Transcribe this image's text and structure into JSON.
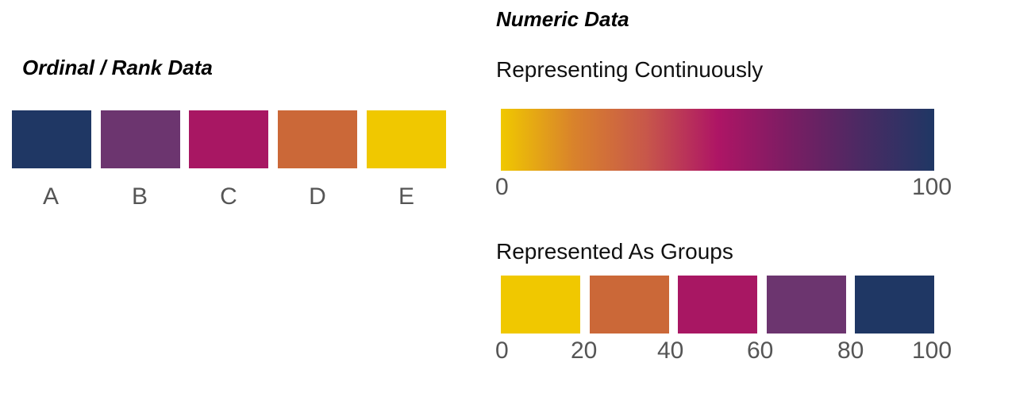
{
  "ordinal": {
    "title": "Ordinal / Rank Data",
    "items": [
      {
        "label": "A",
        "color": "#1f3764"
      },
      {
        "label": "B",
        "color": "#6c356f"
      },
      {
        "label": "C",
        "color": "#a81763"
      },
      {
        "label": "D",
        "color": "#cb6838"
      },
      {
        "label": "E",
        "color": "#f0c800"
      }
    ]
  },
  "numeric": {
    "title": "Numeric Data",
    "continuous": {
      "subtitle": "Representing Continuously",
      "colors": [
        "#f0c800",
        "#d9832b",
        "#c8584a",
        "#ae1565",
        "#7a1d63",
        "#4a2a63",
        "#1f3764"
      ],
      "min_label": "0",
      "max_label": "100"
    },
    "groups": {
      "subtitle": "Represented As Groups",
      "colors": [
        "#f0c800",
        "#cb6838",
        "#a81763",
        "#6c356f",
        "#1f3764"
      ],
      "tick_labels": [
        "0",
        "20",
        "40",
        "60",
        "80",
        "100"
      ]
    }
  }
}
